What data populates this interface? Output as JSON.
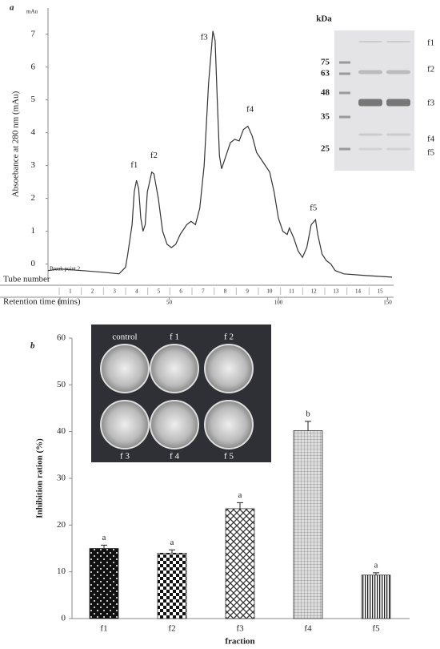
{
  "chart_data": [
    {
      "type": "line",
      "panel": "a",
      "unit_label": "mAu",
      "ylabel": "Absoebance at 280 nm (mAu)",
      "x": [
        -5.5,
        0,
        10,
        20,
        27,
        30,
        31,
        33,
        34,
        35,
        36,
        37,
        38,
        39,
        40,
        42,
        43,
        45,
        47,
        49,
        51,
        53,
        55,
        58,
        60,
        62,
        64,
        66,
        68,
        70,
        71,
        72,
        73,
        74,
        76,
        78,
        80,
        82,
        84,
        86,
        88,
        90,
        93,
        96,
        98,
        100,
        102,
        104,
        105,
        107,
        109,
        111,
        113,
        115,
        117,
        118,
        120,
        122,
        124,
        126,
        130,
        140,
        152
      ],
      "values": [
        -0.2,
        -0.15,
        -0.2,
        -0.25,
        -0.3,
        -0.1,
        0.3,
        1.2,
        2.2,
        2.55,
        2.3,
        1.4,
        1.0,
        1.2,
        2.2,
        2.8,
        2.75,
        2.0,
        1.0,
        0.6,
        0.5,
        0.6,
        0.9,
        1.2,
        1.3,
        1.2,
        1.7,
        3.0,
        5.5,
        7.1,
        6.8,
        5.0,
        3.3,
        2.9,
        3.3,
        3.7,
        3.8,
        3.75,
        4.1,
        4.2,
        3.9,
        3.4,
        3.1,
        2.8,
        2.2,
        1.4,
        1.0,
        0.9,
        1.1,
        0.8,
        0.4,
        0.2,
        0.5,
        1.2,
        1.35,
        0.9,
        0.3,
        0.1,
        0.0,
        -0.2,
        -0.3,
        -0.35,
        -0.4
      ],
      "color": "#333333",
      "xlim": [
        -5.5,
        152
      ],
      "ylim": [
        -0.5,
        7.8
      ],
      "xticks": [
        0,
        50,
        100,
        150
      ],
      "yticks": [
        0,
        1,
        2,
        3,
        4,
        5,
        6,
        7
      ],
      "tube_label": "Tube number",
      "tubes": [
        1,
        2,
        3,
        4,
        5,
        6,
        7,
        8,
        9,
        10,
        11,
        12,
        13,
        14,
        15
      ],
      "time_label": "Retention time (mins)",
      "marker_text": "Break point 2",
      "annotations": [
        {
          "text": "f1",
          "x": 34,
          "y": 3.0
        },
        {
          "text": "f2",
          "x": 43,
          "y": 3.3
        },
        {
          "text": "f3",
          "x": 66,
          "y": 6.9
        },
        {
          "text": "f4",
          "x": 87,
          "y": 4.7
        },
        {
          "text": "f5",
          "x": 116,
          "y": 1.7
        }
      ],
      "gel": {
        "unit": "kDa",
        "markers": [
          75,
          63,
          48,
          35,
          25
        ],
        "bands": [
          "f1",
          "f2",
          "f3",
          "f4",
          "f5"
        ]
      }
    },
    {
      "type": "bar",
      "panel": "b",
      "categories": [
        "f1",
        "f2",
        "f3",
        "f4",
        "f5"
      ],
      "values": [
        15.0,
        14.0,
        23.5,
        40.2,
        9.3
      ],
      "errors": [
        0.7,
        0.7,
        1.3,
        2.0,
        0.5
      ],
      "significance": [
        "a",
        "a",
        "a",
        "b",
        "a"
      ],
      "ylim": [
        0,
        60
      ],
      "yticks": [
        0,
        10,
        20,
        30,
        40,
        50,
        60
      ],
      "xlabel": "fraction",
      "ylabel": "Inhibition ration (%)",
      "photo_labels": [
        "control",
        "f 1",
        "f 2",
        "f 3",
        "f 4",
        "f 5"
      ]
    }
  ]
}
